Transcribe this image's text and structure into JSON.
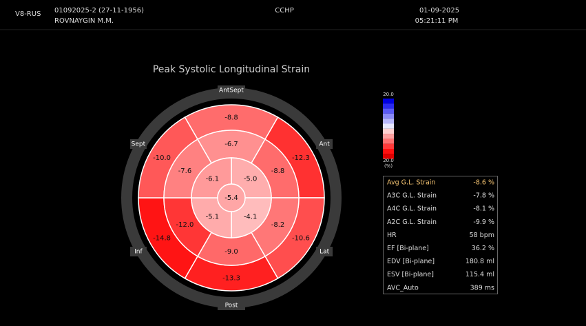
{
  "header": {
    "probe": "V8-RUS",
    "patient_id": "01092025-2 (27-11-1956)",
    "patient_name": "ROVNAYGIN M.M.",
    "department": "CCHP",
    "date": "01-09-2025",
    "time": "05:21:11 PM"
  },
  "bullseye": {
    "title": "Peak Systolic Longitudinal Strain",
    "wall_labels": [
      "AntSept",
      "Ant",
      "Lat",
      "Post",
      "Inf",
      "Sept"
    ],
    "basal": [
      "-8.8",
      "-12.3",
      "-10.6",
      "-13.3",
      "-14.8",
      "-10.0"
    ],
    "mid": [
      "-6.7",
      "-8.8",
      "-8.2",
      "-9.0",
      "-12.0",
      "-7.6"
    ],
    "apical": [
      "-5.0",
      "-4.1",
      "-5.1",
      "-6.1"
    ],
    "apex": "-5.4"
  },
  "color_scale": {
    "top": "20.0",
    "bottom": "20.0",
    "unit": "(%)"
  },
  "table": {
    "rows": [
      [
        "Avg G.L. Strain",
        "-8.6 %"
      ],
      [
        "A3C G.L. Strain",
        "-7.8 %"
      ],
      [
        "A4C G.L. Strain",
        "-8.1 %"
      ],
      [
        "A2C G.L. Strain",
        "-9.9 %"
      ],
      [
        "HR",
        "58 bpm"
      ],
      [
        "EF [Bi-plane]",
        "36.2 %"
      ],
      [
        "EDV [Bi-plane]",
        "180.8 ml"
      ],
      [
        "ESV [Bi-plane]",
        "115.4 ml"
      ],
      [
        "AVC_Auto",
        "389 ms"
      ]
    ]
  }
}
